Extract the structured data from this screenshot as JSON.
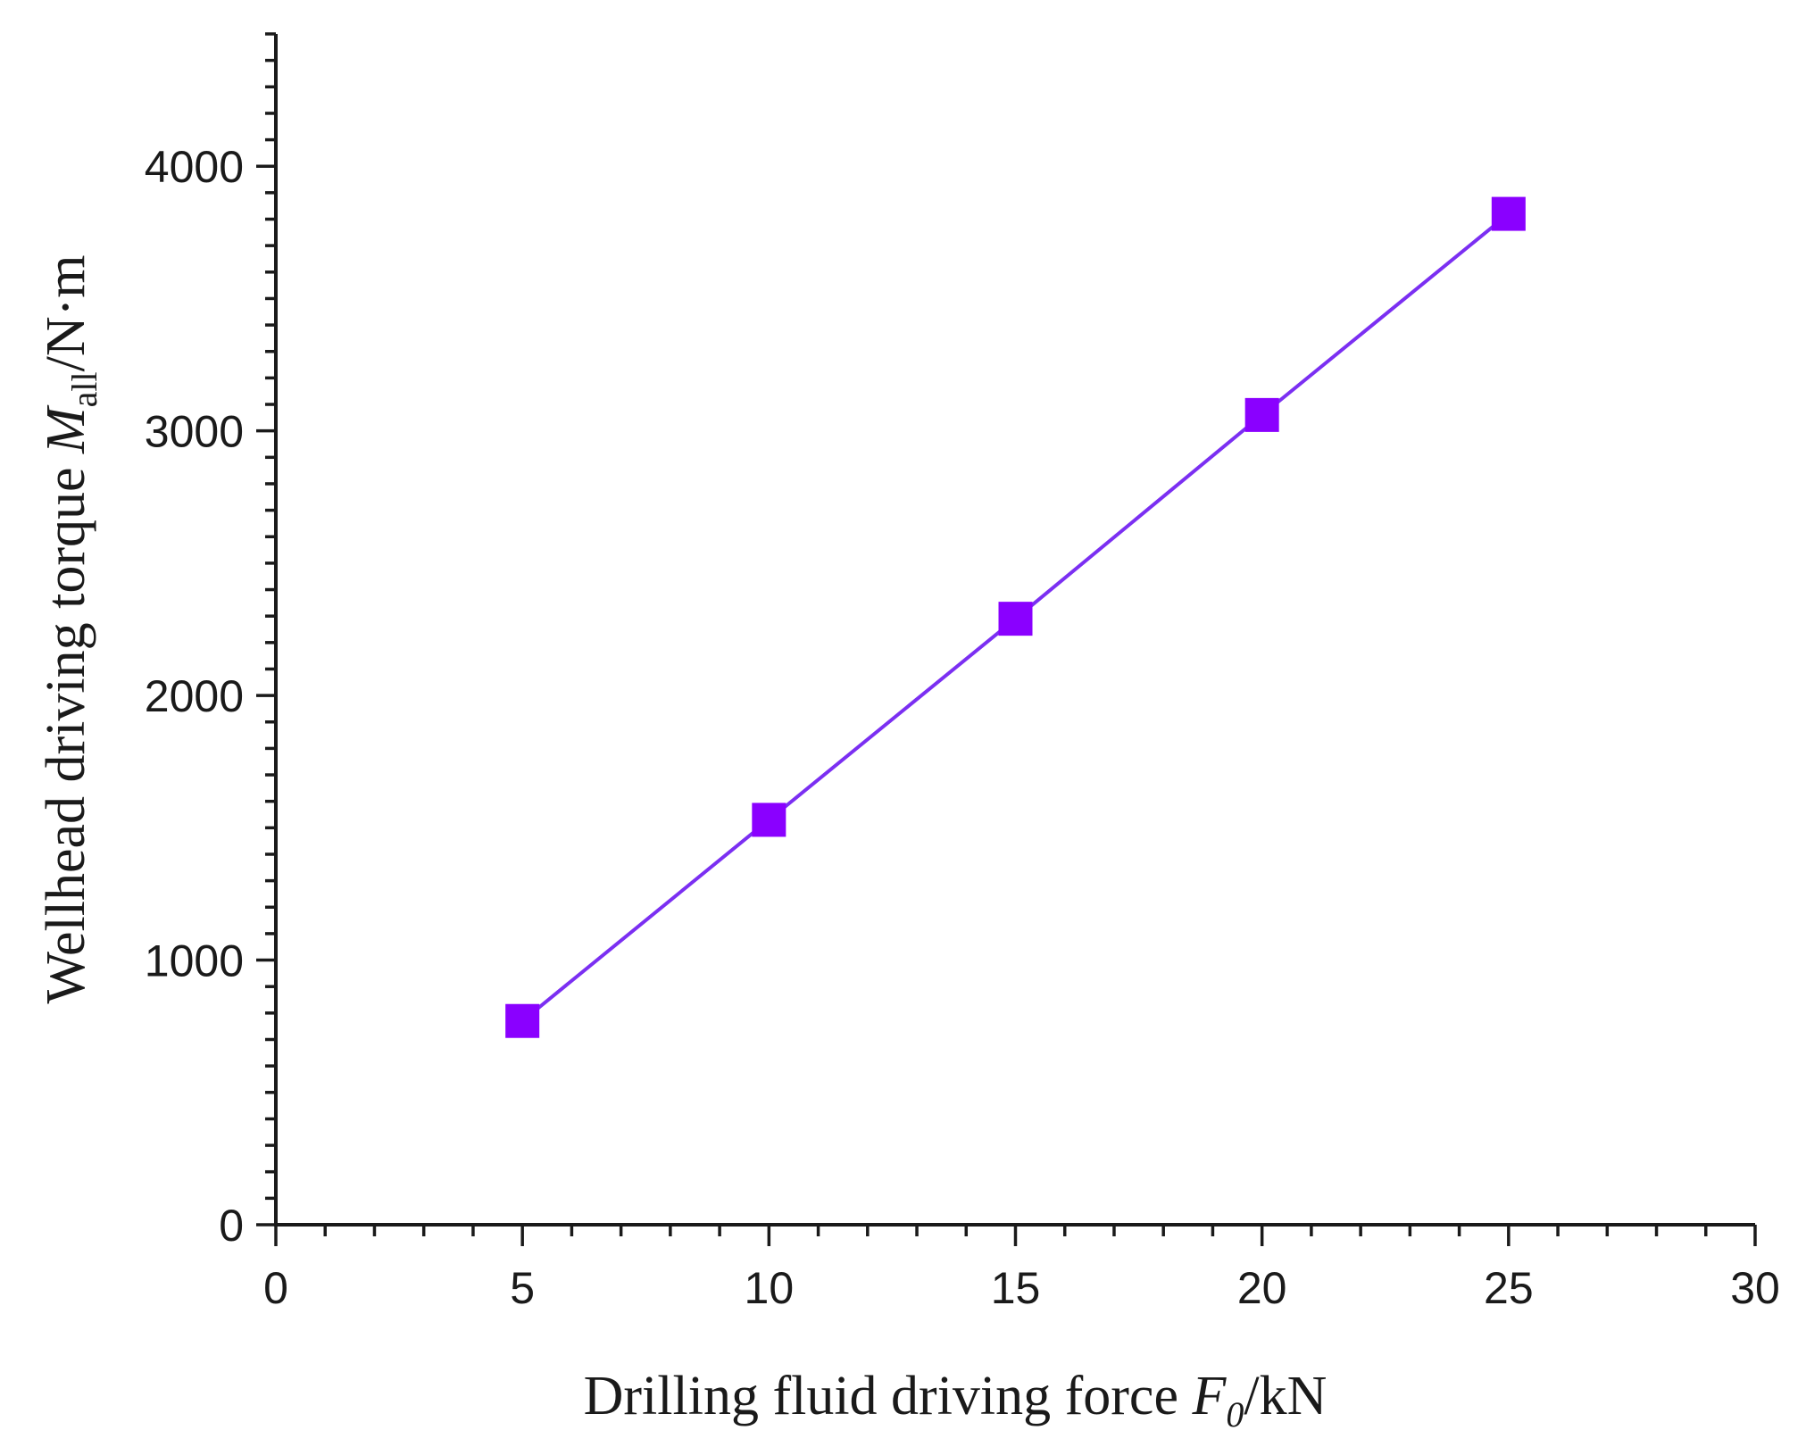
{
  "chart_data": {
    "type": "line",
    "x_axis": {
      "label_text": "Drilling fluid driving force ",
      "label_symbol": "F",
      "label_subscript": "0",
      "label_unit": "/kN",
      "range": [
        0,
        30
      ],
      "major_ticks": [
        0,
        5,
        10,
        15,
        20,
        25,
        30
      ],
      "tick_labels": [
        "0",
        "5",
        "10",
        "15",
        "20",
        "25",
        "30"
      ],
      "minor_step": 1
    },
    "y_axis": {
      "label_text": "Wellhead driving torque ",
      "label_symbol": "M",
      "label_subscript": "all",
      "label_unit": "/N·m",
      "range": [
        0,
        4500
      ],
      "major_ticks": [
        0,
        1000,
        2000,
        3000,
        4000
      ],
      "tick_labels": [
        "0",
        "1000",
        "2000",
        "3000",
        "4000"
      ],
      "minor_step": 100
    },
    "series": [
      {
        "x": [
          5,
          10,
          15,
          20,
          25
        ],
        "y": [
          770,
          1530,
          2290,
          3060,
          3820
        ],
        "color": "#8a00ff",
        "marker": "square"
      }
    ],
    "grid": false,
    "legend": "none"
  }
}
